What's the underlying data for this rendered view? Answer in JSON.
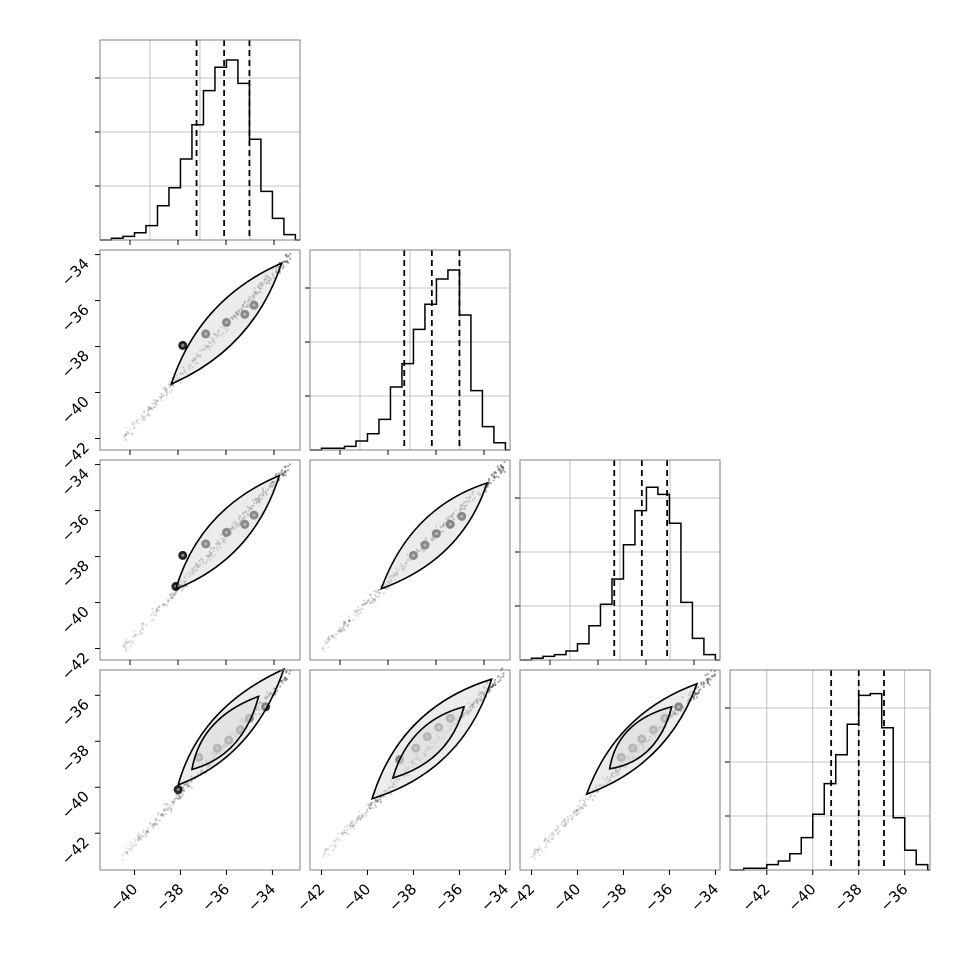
{
  "figure": {
    "kind": "corner-plot",
    "n_parameters": 4,
    "colors": {
      "line": "#000000",
      "grid": "#b0b0b0",
      "frame": "#808080",
      "sample": "#333333"
    }
  },
  "chart_data": [
    {
      "type": "histogram",
      "panel": "1-1",
      "diagonal": true,
      "xlim": [
        -41.5,
        -32.8
      ],
      "ylim": [
        0,
        1
      ],
      "bin_edges": [
        -41.5,
        -41.0,
        -40.5,
        -40.0,
        -39.5,
        -39.0,
        -38.5,
        -38.0,
        -37.5,
        -37.0,
        -36.5,
        -36.0,
        -35.5,
        -35.0,
        -34.5,
        -34.0,
        -33.5,
        -33.0
      ],
      "counts": [
        0.0,
        0.01,
        0.02,
        0.04,
        0.08,
        0.19,
        0.29,
        0.45,
        0.64,
        0.83,
        0.96,
        1.0,
        0.87,
        0.56,
        0.27,
        0.12,
        0.03
      ],
      "quantiles": [
        -37.3,
        -36.1,
        -35.0
      ],
      "grid": true,
      "x_tick_labels": [],
      "y_tick_labels": []
    },
    {
      "type": "scatter",
      "panel": "2-1",
      "xlim": [
        -41.5,
        -32.8
      ],
      "ylim": [
        -42.5,
        -33.8
      ],
      "trend": {
        "x": [
          -40.5,
          -33.2
        ],
        "y": [
          -42.0,
          -34.0
        ]
      },
      "contours": [
        {
          "center": [
            -36.0,
            -37.0
          ],
          "x_extent": [
            -38.4,
            -33.6
          ],
          "width": 0.45
        }
      ],
      "density_points": [
        [
          -37.9,
          -37.95
        ],
        [
          -36.9,
          -37.45
        ],
        [
          -36.0,
          -36.95
        ],
        [
          -35.2,
          -36.6
        ],
        [
          -34.8,
          -36.2
        ]
      ],
      "grid": false,
      "x_tick_labels": [],
      "y_ticks": [
        -42,
        -40,
        -38,
        -36,
        -34
      ],
      "y_tick_labels": [
        "−42",
        "−40",
        "−38",
        "−36",
        "−34"
      ]
    },
    {
      "type": "histogram",
      "panel": "2-2",
      "diagonal": true,
      "xlim": [
        -42.5,
        -33.8
      ],
      "ylim": [
        0,
        1
      ],
      "bin_edges": [
        -42.0,
        -41.5,
        -41.0,
        -40.5,
        -40.0,
        -39.5,
        -39.0,
        -38.5,
        -38.0,
        -37.5,
        -37.0,
        -36.5,
        -36.0,
        -35.5,
        -35.0,
        -34.5,
        -34.0
      ],
      "counts": [
        0.01,
        0.01,
        0.02,
        0.05,
        0.09,
        0.17,
        0.35,
        0.48,
        0.67,
        0.81,
        0.95,
        1.0,
        0.75,
        0.33,
        0.13,
        0.04
      ],
      "quantiles": [
        -38.4,
        -37.2,
        -36.0
      ],
      "grid": true,
      "x_tick_labels": [],
      "y_tick_labels": []
    },
    {
      "type": "scatter",
      "panel": "3-1",
      "xlim": [
        -41.5,
        -32.8
      ],
      "ylim": [
        -42.5,
        -33.8
      ],
      "trend": {
        "x": [
          -40.5,
          -33.2
        ],
        "y": [
          -42.0,
          -34.0
        ]
      },
      "contours": [
        {
          "center": [
            -36.0,
            -37.0
          ],
          "x_extent": [
            -38.2,
            -33.7
          ],
          "width": 0.45
        }
      ],
      "density_points": [
        [
          -38.2,
          -39.3
        ],
        [
          -37.9,
          -37.95
        ],
        [
          -36.9,
          -37.45
        ],
        [
          -36.0,
          -36.95
        ],
        [
          -35.2,
          -36.6
        ],
        [
          -34.8,
          -36.2
        ]
      ],
      "grid": false,
      "x_tick_labels": [],
      "y_ticks": [
        -42,
        -40,
        -38,
        -36,
        -34
      ],
      "y_tick_labels": [
        "−42",
        "−40",
        "−38",
        "−36",
        "−34"
      ]
    },
    {
      "type": "scatter",
      "panel": "3-2",
      "xlim": [
        -42.5,
        -33.8
      ],
      "ylim": [
        -42.5,
        -33.8
      ],
      "trend": {
        "x": [
          -42.0,
          -34.0
        ],
        "y": [
          -42.0,
          -34.0
        ]
      },
      "contours": [
        {
          "center": [
            -37.0,
            -37.0
          ],
          "x_extent": [
            -39.4,
            -34.8
          ],
          "width": 0.45
        }
      ],
      "density_points": [
        [
          -38.0,
          -37.95
        ],
        [
          -37.5,
          -37.5
        ],
        [
          -37.0,
          -37.0
        ],
        [
          -36.4,
          -36.6
        ],
        [
          -35.9,
          -36.25
        ]
      ],
      "grid": false,
      "x_tick_labels": [],
      "y_tick_labels": []
    },
    {
      "type": "histogram",
      "panel": "3-3",
      "diagonal": true,
      "xlim": [
        -42.5,
        -33.8
      ],
      "ylim": [
        0,
        1
      ],
      "bin_edges": [
        -42.0,
        -41.5,
        -41.0,
        -40.5,
        -40.0,
        -39.5,
        -39.0,
        -38.5,
        -38.0,
        -37.5,
        -37.0,
        -36.5,
        -36.0,
        -35.5,
        -35.0,
        -34.5,
        -34.0
      ],
      "counts": [
        0.01,
        0.02,
        0.03,
        0.05,
        0.09,
        0.19,
        0.31,
        0.45,
        0.64,
        0.83,
        0.96,
        0.92,
        0.76,
        0.32,
        0.12,
        0.03
      ],
      "quantiles": [
        -38.4,
        -37.2,
        -36.1
      ],
      "grid": true,
      "x_tick_labels": [],
      "y_tick_labels": []
    },
    {
      "type": "scatter",
      "panel": "4-1",
      "xlim": [
        -41.5,
        -32.8
      ],
      "ylim": [
        -43.6,
        -34.9
      ],
      "trend": {
        "x": [
          -40.5,
          -33.2
        ],
        "y": [
          -43.0,
          -35.0
        ]
      },
      "contours": [
        {
          "center": [
            -36.0,
            -37.6
          ],
          "x_extent": [
            -38.1,
            -33.5
          ],
          "width": 0.45
        },
        {
          "center": [
            -36.2,
            -37.8
          ],
          "x_extent": [
            -37.5,
            -34.6
          ],
          "width": 0.35
        }
      ],
      "density_points": [
        [
          -38.1,
          -40.1
        ],
        [
          -37.2,
          -38.7
        ],
        [
          -36.4,
          -38.3
        ],
        [
          -35.9,
          -37.95
        ],
        [
          -35.4,
          -37.5
        ],
        [
          -35.0,
          -37.0
        ],
        [
          -34.3,
          -36.5
        ]
      ],
      "grid": false,
      "x_ticks": [
        -40,
        -38,
        -36,
        -34
      ],
      "x_tick_labels": [
        "−40",
        "−38",
        "−36",
        "−34"
      ],
      "y_ticks": [
        -42,
        -40,
        -38,
        -36
      ],
      "y_tick_labels": [
        "−42",
        "−40",
        "−38",
        "−36"
      ]
    },
    {
      "type": "scatter",
      "panel": "4-2",
      "xlim": [
        -42.5,
        -33.8
      ],
      "ylim": [
        -43.6,
        -34.9
      ],
      "trend": {
        "x": [
          -42.0,
          -34.0
        ],
        "y": [
          -43.0,
          -35.0
        ]
      },
      "contours": [
        {
          "center": [
            -37.2,
            -37.9
          ],
          "x_extent": [
            -39.8,
            -34.6
          ],
          "width": 0.55
        },
        {
          "center": [
            -37.3,
            -38.0
          ],
          "x_extent": [
            -38.9,
            -35.8
          ],
          "width": 0.35
        }
      ],
      "density_points": [
        [
          -38.6,
          -38.8
        ],
        [
          -37.9,
          -38.3
        ],
        [
          -37.4,
          -37.8
        ],
        [
          -36.9,
          -37.4
        ],
        [
          -36.4,
          -37.0
        ]
      ],
      "grid": false,
      "x_ticks": [
        -42,
        -40,
        -38,
        -36,
        -34
      ],
      "x_tick_labels": [
        "−42",
        "−40",
        "−38",
        "−36",
        "−34"
      ],
      "y_tick_labels": []
    },
    {
      "type": "scatter",
      "panel": "4-3",
      "xlim": [
        -42.5,
        -33.8
      ],
      "ylim": [
        -43.6,
        -34.9
      ],
      "trend": {
        "x": [
          -42.0,
          -34.0
        ],
        "y": [
          -43.0,
          -35.0
        ]
      },
      "contours": [
        {
          "center": [
            -37.2,
            -37.9
          ],
          "x_extent": [
            -39.6,
            -34.8
          ],
          "width": 0.45
        },
        {
          "center": [
            -37.4,
            -38.0
          ],
          "x_extent": [
            -38.6,
            -35.9
          ],
          "width": 0.35
        }
      ],
      "density_points": [
        [
          -38.1,
          -38.7
        ],
        [
          -37.6,
          -38.3
        ],
        [
          -37.2,
          -37.9
        ],
        [
          -36.7,
          -37.5
        ],
        [
          -36.2,
          -37.0
        ],
        [
          -35.6,
          -36.5
        ]
      ],
      "grid": false,
      "x_ticks": [
        -42,
        -40,
        -38,
        -36,
        -34
      ],
      "x_tick_labels": [
        "−42",
        "−40",
        "−38",
        "−36",
        "−34"
      ],
      "y_tick_labels": []
    },
    {
      "type": "histogram",
      "panel": "4-4",
      "diagonal": true,
      "xlim": [
        -43.6,
        -34.9
      ],
      "ylim": [
        0,
        1
      ],
      "bin_edges": [
        -43.0,
        -42.5,
        -42.0,
        -41.5,
        -41.0,
        -40.5,
        -40.0,
        -39.5,
        -39.0,
        -38.5,
        -38.0,
        -37.5,
        -37.0,
        -36.5,
        -36.0,
        -35.5,
        -35.0
      ],
      "counts": [
        0.01,
        0.01,
        0.03,
        0.05,
        0.09,
        0.18,
        0.31,
        0.48,
        0.64,
        0.81,
        0.97,
        0.98,
        0.79,
        0.29,
        0.11,
        0.03
      ],
      "quantiles": [
        -39.2,
        -38.0,
        -36.9
      ],
      "grid": true,
      "x_ticks": [
        -42,
        -40,
        -38,
        -36
      ],
      "x_tick_labels": [
        "−42",
        "−40",
        "−38",
        "−36"
      ],
      "y_tick_labels": []
    }
  ]
}
